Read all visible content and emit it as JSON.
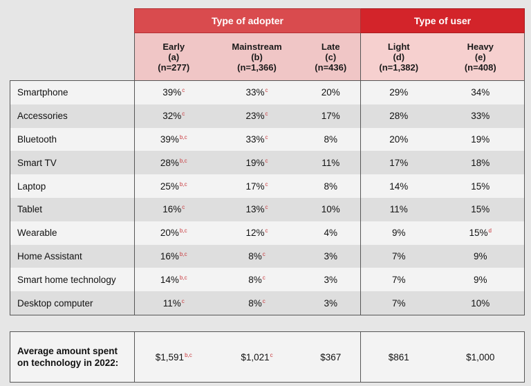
{
  "groups": {
    "adopter": "Type of adopter",
    "user": "Type of user"
  },
  "columns": [
    {
      "name": "Early",
      "code": "(a)",
      "n": "(n=277)"
    },
    {
      "name": "Mainstream",
      "code": "(b)",
      "n": "(n=1,366)"
    },
    {
      "name": "Late",
      "code": "(c)",
      "n": "(n=436)"
    },
    {
      "name": "Light",
      "code": "(d)",
      "n": "(n=1,382)"
    },
    {
      "name": "Heavy",
      "code": "(e)",
      "n": "(n=408)"
    }
  ],
  "rows": [
    {
      "label": "Smartphone",
      "cells": [
        {
          "v": "39%",
          "s": "c"
        },
        {
          "v": "33%",
          "s": "c"
        },
        {
          "v": "20%",
          "s": ""
        },
        {
          "v": "29%",
          "s": ""
        },
        {
          "v": "34%",
          "s": ""
        }
      ]
    },
    {
      "label": "Accessories",
      "cells": [
        {
          "v": "32%",
          "s": "c"
        },
        {
          "v": "23%",
          "s": "c"
        },
        {
          "v": "17%",
          "s": ""
        },
        {
          "v": "28%",
          "s": ""
        },
        {
          "v": "33%",
          "s": ""
        }
      ]
    },
    {
      "label": "Bluetooth",
      "cells": [
        {
          "v": "39%",
          "s": "b,c"
        },
        {
          "v": "33%",
          "s": "c"
        },
        {
          "v": "8%",
          "s": ""
        },
        {
          "v": "20%",
          "s": ""
        },
        {
          "v": "19%",
          "s": ""
        }
      ]
    },
    {
      "label": "Smart TV",
      "cells": [
        {
          "v": "28%",
          "s": "b,c"
        },
        {
          "v": "19%",
          "s": "c"
        },
        {
          "v": "11%",
          "s": ""
        },
        {
          "v": "17%",
          "s": ""
        },
        {
          "v": "18%",
          "s": ""
        }
      ]
    },
    {
      "label": "Laptop",
      "cells": [
        {
          "v": "25%",
          "s": "b,c"
        },
        {
          "v": "17%",
          "s": "c"
        },
        {
          "v": "8%",
          "s": ""
        },
        {
          "v": "14%",
          "s": ""
        },
        {
          "v": "15%",
          "s": ""
        }
      ]
    },
    {
      "label": "Tablet",
      "cells": [
        {
          "v": "16%",
          "s": "c"
        },
        {
          "v": "13%",
          "s": "c"
        },
        {
          "v": "10%",
          "s": ""
        },
        {
          "v": "11%",
          "s": ""
        },
        {
          "v": "15%",
          "s": ""
        }
      ]
    },
    {
      "label": "Wearable",
      "cells": [
        {
          "v": "20%",
          "s": "b,c"
        },
        {
          "v": "12%",
          "s": "c"
        },
        {
          "v": "4%",
          "s": ""
        },
        {
          "v": "9%",
          "s": ""
        },
        {
          "v": "15%",
          "s": "d"
        }
      ]
    },
    {
      "label": "Home Assistant",
      "cells": [
        {
          "v": "16%",
          "s": "b,c"
        },
        {
          "v": "8%",
          "s": "c"
        },
        {
          "v": "3%",
          "s": ""
        },
        {
          "v": "7%",
          "s": ""
        },
        {
          "v": "9%",
          "s": ""
        }
      ]
    },
    {
      "label": "Smart home technology",
      "cells": [
        {
          "v": "14%",
          "s": "b,c"
        },
        {
          "v": "8%",
          "s": "c"
        },
        {
          "v": "3%",
          "s": ""
        },
        {
          "v": "7%",
          "s": ""
        },
        {
          "v": "9%",
          "s": ""
        }
      ]
    },
    {
      "label": "Desktop computer",
      "cells": [
        {
          "v": "11%",
          "s": "c"
        },
        {
          "v": "8%",
          "s": "c"
        },
        {
          "v": "3%",
          "s": ""
        },
        {
          "v": "7%",
          "s": ""
        },
        {
          "v": "10%",
          "s": ""
        }
      ]
    }
  ],
  "average": {
    "label_line1": "Average amount spent",
    "label_line2": "on technology in 2022:",
    "cells": [
      {
        "v": "$1,591",
        "s": "b,c"
      },
      {
        "v": "$1,021",
        "s": "c"
      },
      {
        "v": "$367",
        "s": ""
      },
      {
        "v": "$861",
        "s": ""
      },
      {
        "v": "$1,000",
        "s": ""
      }
    ]
  },
  "colors": {
    "adopter_header": "#d94b4e",
    "user_header": "#d3242a",
    "subheader": "#f0c6c6",
    "significance": "#c8383c"
  }
}
